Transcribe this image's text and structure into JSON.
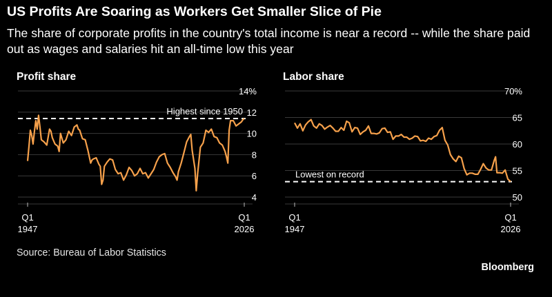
{
  "header": {
    "title": "US Profits Are Soaring as Workers Get Smaller Slice of Pie",
    "subtitle": "The share of corporate profits in the country's total income is near a record -- while the share paid out as wages and salaries hit an all-time low this year"
  },
  "footer": {
    "source": "Source: Bureau of Labor Statistics",
    "brand": "Bloomberg"
  },
  "colors": {
    "line": "#f7a14b",
    "grid": "#3a3a3a",
    "reference": "#ffffff",
    "background": "#000000",
    "text": "#ffffff"
  },
  "chart_data": [
    {
      "type": "line",
      "title": "Profit share",
      "x_ticks": [
        {
          "label": "Q1",
          "label2": "1947",
          "x": 1947.0
        },
        {
          "label": "Q1",
          "label2": "2026",
          "x": 2026.0
        }
      ],
      "xlim": [
        1947.0,
        2026.0
      ],
      "ylim": [
        4,
        14
      ],
      "y_ticks": [
        4,
        6,
        8,
        10,
        12,
        14
      ],
      "y_unit": "%",
      "grid": true,
      "reference_line": {
        "value": 11.4,
        "label": "Highest since 1950"
      },
      "series": [
        {
          "x": [
            1947.0,
            1947.5,
            1948.0,
            1948.5,
            1949.0,
            1949.5,
            1950.0,
            1950.5,
            1951.0,
            1951.5,
            1952.0,
            1953.0,
            1954.0,
            1955.0,
            1955.5,
            1956.0,
            1957.0,
            1958.0,
            1958.5,
            1959.0,
            1960.0,
            1961.0,
            1962.0,
            1963.0,
            1964.0,
            1965.0,
            1965.5,
            1966.0,
            1967.0,
            1968.0,
            1969.0,
            1970.0,
            1970.5,
            1971.0,
            1972.0,
            1973.0,
            1973.5,
            1974.0,
            1974.5,
            1975.0,
            1976.0,
            1977.0,
            1978.0,
            1979.0,
            1980.0,
            1981.0,
            1982.0,
            1983.0,
            1984.0,
            1985.0,
            1986.0,
            1987.0,
            1988.0,
            1989.0,
            1990.0,
            1991.0,
            1992.0,
            1993.0,
            1994.0,
            1995.0,
            1996.0,
            1997.0,
            1998.0,
            1999.0,
            2000.0,
            2001.0,
            2001.5,
            2002.0,
            2003.0,
            2004.0,
            2005.0,
            2006.0,
            2006.5,
            2007.0,
            2008.0,
            2008.5,
            2009.0,
            2010.0,
            2011.0,
            2012.0,
            2013.0,
            2014.0,
            2015.0,
            2016.0,
            2017.0,
            2018.0,
            2019.0,
            2019.5,
            2020.0,
            2020.5,
            2021.0,
            2022.0,
            2023.0,
            2024.0,
            2025.0,
            2025.5,
            2026.0
          ],
          "y": [
            7.4,
            8.8,
            10.3,
            9.8,
            9.0,
            10.2,
            11.2,
            10.4,
            11.7,
            10.6,
            9.4,
            9.2,
            8.9,
            10.4,
            10.2,
            9.6,
            9.0,
            8.8,
            8.3,
            10.0,
            9.1,
            9.4,
            10.2,
            9.8,
            10.6,
            10.8,
            10.4,
            10.3,
            9.5,
            9.4,
            8.4,
            7.2,
            7.5,
            7.6,
            7.7,
            7.1,
            6.9,
            5.2,
            5.6,
            6.9,
            7.3,
            7.6,
            7.5,
            6.6,
            6.2,
            6.3,
            5.6,
            6.1,
            6.8,
            6.5,
            6.0,
            6.2,
            6.7,
            6.2,
            6.3,
            5.8,
            6.2,
            6.6,
            7.3,
            7.8,
            8.0,
            8.1,
            7.2,
            6.8,
            6.3,
            5.9,
            5.6,
            6.4,
            7.2,
            8.2,
            9.2,
            9.7,
            9.9,
            8.4,
            6.7,
            4.6,
            6.2,
            8.7,
            9.1,
            10.3,
            10.1,
            10.4,
            9.7,
            9.6,
            9.1,
            8.9,
            8.3,
            7.8,
            7.2,
            10.3,
            11.2,
            11.2,
            10.7,
            10.9,
            11.1,
            11.3,
            11.4
          ]
        }
      ]
    },
    {
      "type": "line",
      "title": "Labor share",
      "x_ticks": [
        {
          "label": "Q1",
          "label2": "1947",
          "x": 1947.0
        },
        {
          "label": "Q1",
          "label2": "2026",
          "x": 2026.0
        }
      ],
      "xlim": [
        1947.0,
        2026.0
      ],
      "ylim": [
        50,
        70
      ],
      "y_ticks": [
        50,
        55,
        60,
        65,
        70
      ],
      "y_unit": "%",
      "grid": true,
      "reference_line": {
        "value": 52.9,
        "label": "Lowest on record"
      },
      "series": [
        {
          "x": [
            1947.0,
            1948.0,
            1949.0,
            1950.0,
            1951.0,
            1952.0,
            1953.0,
            1954.0,
            1955.0,
            1956.0,
            1957.0,
            1958.0,
            1959.0,
            1960.0,
            1961.0,
            1962.0,
            1963.0,
            1964.0,
            1965.0,
            1966.0,
            1967.0,
            1968.0,
            1969.0,
            1970.0,
            1971.0,
            1972.0,
            1973.0,
            1974.0,
            1975.0,
            1976.0,
            1977.0,
            1978.0,
            1979.0,
            1980.0,
            1981.0,
            1982.0,
            1983.0,
            1984.0,
            1985.0,
            1986.0,
            1987.0,
            1988.0,
            1989.0,
            1990.0,
            1991.0,
            1992.0,
            1993.0,
            1994.0,
            1995.0,
            1996.0,
            1997.0,
            1998.0,
            1999.0,
            2000.0,
            2001.0,
            2002.0,
            2003.0,
            2004.0,
            2005.0,
            2006.0,
            2007.0,
            2008.0,
            2009.0,
            2010.0,
            2011.0,
            2012.0,
            2013.0,
            2014.0,
            2015.0,
            2016.0,
            2017.0,
            2018.0,
            2019.0,
            2020.0,
            2020.5,
            2021.0,
            2022.0,
            2023.0,
            2024.0,
            2025.0,
            2026.0
          ],
          "y": [
            64.0,
            63.0,
            63.8,
            62.5,
            63.6,
            64.2,
            64.6,
            63.4,
            63.0,
            63.8,
            63.5,
            62.8,
            63.2,
            63.5,
            63.0,
            62.4,
            62.4,
            63.1,
            62.6,
            64.3,
            64.0,
            62.3,
            63.1,
            63.0,
            61.8,
            62.3,
            62.6,
            63.4,
            62.0,
            62.0,
            61.9,
            62.1,
            62.9,
            63.0,
            62.2,
            62.3,
            60.9,
            61.5,
            61.5,
            61.8,
            61.3,
            61.3,
            60.9,
            61.1,
            61.5,
            61.4,
            60.6,
            60.7,
            60.5,
            61.1,
            60.9,
            61.4,
            61.6,
            62.6,
            63.1,
            60.7,
            59.8,
            58.0,
            57.2,
            56.7,
            57.7,
            57.4,
            55.4,
            54.2,
            54.5,
            54.5,
            54.3,
            54.3,
            55.2,
            56.3,
            55.5,
            55.1,
            55.1,
            56.9,
            57.6,
            54.6,
            54.6,
            54.5,
            55.1,
            53.4,
            52.9
          ]
        }
      ]
    }
  ]
}
